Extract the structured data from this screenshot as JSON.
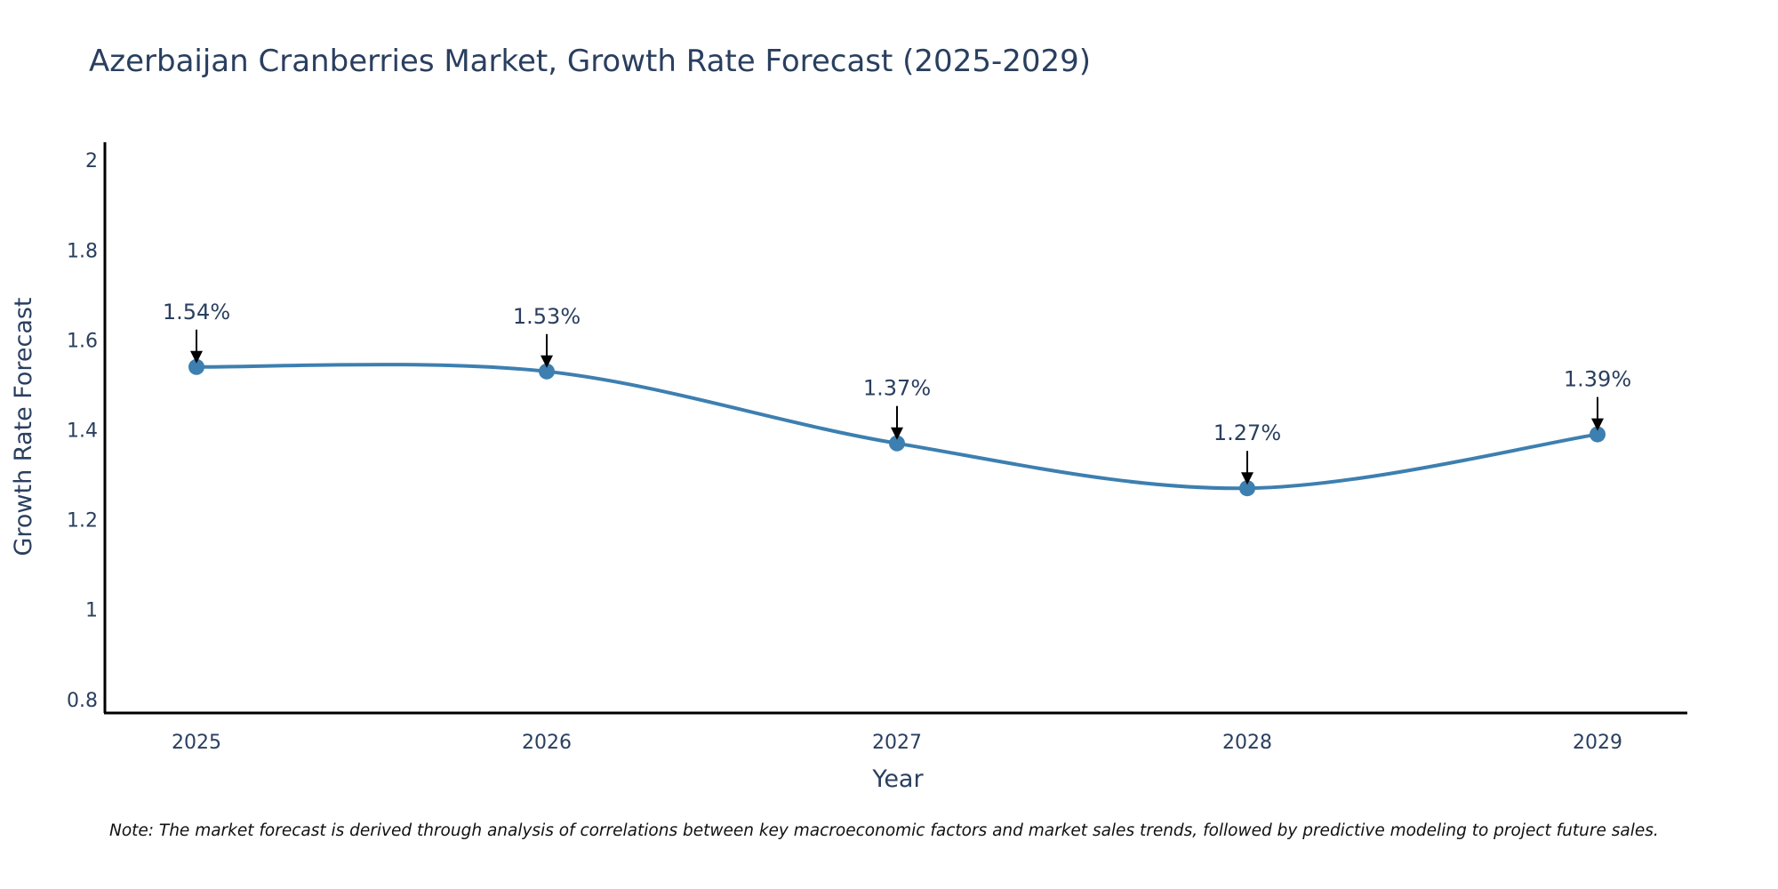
{
  "chart_data": {
    "type": "line",
    "title": "Azerbaijan Cranberries Market, Growth Rate Forecast (2025-2029)",
    "xlabel": "Year",
    "ylabel": "Growth Rate Forecast",
    "categories": [
      "2025",
      "2026",
      "2027",
      "2028",
      "2029"
    ],
    "values": [
      1.54,
      1.53,
      1.37,
      1.27,
      1.39
    ],
    "data_labels": [
      "1.54%",
      "1.53%",
      "1.37%",
      "1.27%",
      "1.39%"
    ],
    "yticks": [
      0.8,
      1,
      1.2,
      1.4,
      1.6,
      1.8,
      2
    ],
    "ytick_labels": [
      "0.8",
      "1",
      "1.2",
      "1.4",
      "1.6",
      "1.8",
      "2"
    ],
    "ylim": [
      0.77,
      2.04
    ],
    "grid": false,
    "line_color": "#3d7fb0",
    "note": "Note: The market forecast is derived through analysis of correlations between key macroeconomic factors and market sales trends, followed by predictive modeling to project future sales."
  }
}
